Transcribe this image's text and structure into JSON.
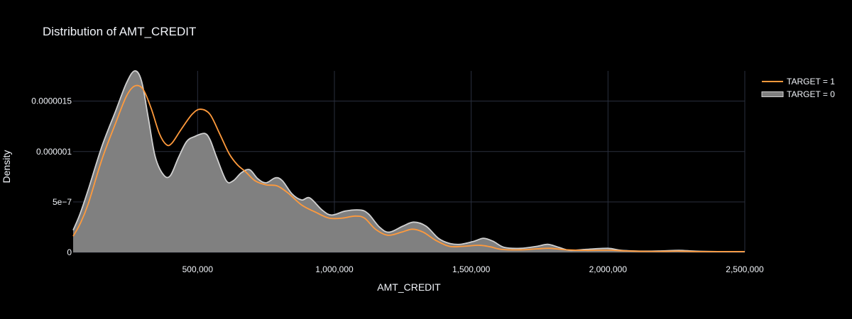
{
  "chart_data": {
    "type": "area",
    "title": "Distribution of AMT_CREDIT",
    "xlabel": "AMT_CREDIT",
    "ylabel": "Density",
    "xlim": [
      45000,
      2500000
    ],
    "ylim": [
      0,
      1.8e-06
    ],
    "grid": true,
    "legend_position": "top-right",
    "x_ticks": [
      {
        "value": 500000,
        "label": "500,000"
      },
      {
        "value": 1000000,
        "label": "1,000,000"
      },
      {
        "value": 1500000,
        "label": "1,500,000"
      },
      {
        "value": 2000000,
        "label": "2,000,000"
      },
      {
        "value": 2500000,
        "label": "2,500,000"
      }
    ],
    "y_ticks": [
      {
        "value": 0,
        "label": "0"
      },
      {
        "value": 5e-07,
        "label": "5e−7"
      },
      {
        "value": 1e-06,
        "label": "0.000001"
      },
      {
        "value": 1.5e-06,
        "label": "0.0000015"
      }
    ],
    "series": [
      {
        "name": "TARGET = 0",
        "kind": "area",
        "color": "#d0d0d0",
        "fill": "#808080",
        "points": [
          [
            45000,
            2.2e-07
          ],
          [
            70000,
            3.8e-07
          ],
          [
            100000,
            6.2e-07
          ],
          [
            150000,
            1.05e-06
          ],
          [
            200000,
            1.4e-06
          ],
          [
            240000,
            1.68e-06
          ],
          [
            270000,
            1.8e-06
          ],
          [
            295000,
            1.7e-06
          ],
          [
            320000,
            1.33e-06
          ],
          [
            345000,
            9.5e-07
          ],
          [
            375000,
            7.7e-07
          ],
          [
            400000,
            7.6e-07
          ],
          [
            430000,
            9.4e-07
          ],
          [
            460000,
            1.1e-06
          ],
          [
            490000,
            1.15e-06
          ],
          [
            525000,
            1.18e-06
          ],
          [
            545000,
            1.12e-06
          ],
          [
            570000,
            9.4e-07
          ],
          [
            605000,
            7.1e-07
          ],
          [
            630000,
            7.1e-07
          ],
          [
            660000,
            7.9e-07
          ],
          [
            690000,
            8.2e-07
          ],
          [
            720000,
            7.3e-07
          ],
          [
            750000,
            6.9e-07
          ],
          [
            785000,
            7.4e-07
          ],
          [
            810000,
            7.1e-07
          ],
          [
            845000,
            5.8e-07
          ],
          [
            880000,
            5.2e-07
          ],
          [
            910000,
            5.4e-07
          ],
          [
            955000,
            4.2e-07
          ],
          [
            990000,
            3.7e-07
          ],
          [
            1040000,
            4.1e-07
          ],
          [
            1095000,
            4.2e-07
          ],
          [
            1125000,
            3.8e-07
          ],
          [
            1165000,
            2.5e-07
          ],
          [
            1200000,
            2e-07
          ],
          [
            1250000,
            2.6e-07
          ],
          [
            1290000,
            3e-07
          ],
          [
            1335000,
            2.6e-07
          ],
          [
            1380000,
            1.4e-07
          ],
          [
            1420000,
            9e-08
          ],
          [
            1460000,
            8e-08
          ],
          [
            1510000,
            1.1e-07
          ],
          [
            1545000,
            1.4e-07
          ],
          [
            1580000,
            1.1e-07
          ],
          [
            1620000,
            5e-08
          ],
          [
            1680000,
            4e-08
          ],
          [
            1740000,
            6e-08
          ],
          [
            1780000,
            8e-08
          ],
          [
            1820000,
            5e-08
          ],
          [
            1860000,
            2e-08
          ],
          [
            1920000,
            3e-08
          ],
          [
            2000000,
            4e-08
          ],
          [
            2050000,
            2e-08
          ],
          [
            2130000,
            1.2e-08
          ],
          [
            2200000,
            1.5e-08
          ],
          [
            2260000,
            2e-08
          ],
          [
            2320000,
            1.2e-08
          ],
          [
            2400000,
            8e-09
          ],
          [
            2500000,
            8e-09
          ]
        ]
      },
      {
        "name": "TARGET = 1",
        "kind": "line",
        "color": "#ff9a3c",
        "points": [
          [
            45000,
            1.6e-07
          ],
          [
            70000,
            2.8e-07
          ],
          [
            100000,
            4.8e-07
          ],
          [
            150000,
            9.2e-07
          ],
          [
            200000,
            1.28e-06
          ],
          [
            240000,
            1.55e-06
          ],
          [
            270000,
            1.65e-06
          ],
          [
            300000,
            1.62e-06
          ],
          [
            330000,
            1.43e-06
          ],
          [
            360000,
            1.18e-06
          ],
          [
            385000,
            1.07e-06
          ],
          [
            405000,
            1.08e-06
          ],
          [
            440000,
            1.22e-06
          ],
          [
            480000,
            1.37e-06
          ],
          [
            510000,
            1.42e-06
          ],
          [
            545000,
            1.37e-06
          ],
          [
            580000,
            1.18e-06
          ],
          [
            615000,
            9.8e-07
          ],
          [
            645000,
            8.7e-07
          ],
          [
            675000,
            8e-07
          ],
          [
            710000,
            7.1e-07
          ],
          [
            750000,
            6.7e-07
          ],
          [
            790000,
            6.6e-07
          ],
          [
            830000,
            5.9e-07
          ],
          [
            880000,
            4.7e-07
          ],
          [
            930000,
            4e-07
          ],
          [
            980000,
            3.4e-07
          ],
          [
            1030000,
            3.4e-07
          ],
          [
            1075000,
            3.6e-07
          ],
          [
            1110000,
            3.4e-07
          ],
          [
            1150000,
            2.3e-07
          ],
          [
            1195000,
            1.7e-07
          ],
          [
            1245000,
            2e-07
          ],
          [
            1285000,
            2.3e-07
          ],
          [
            1325000,
            2e-07
          ],
          [
            1370000,
            1.2e-07
          ],
          [
            1420000,
            6e-08
          ],
          [
            1470000,
            6e-08
          ],
          [
            1530000,
            7e-08
          ],
          [
            1570000,
            5.5e-08
          ],
          [
            1610000,
            3e-08
          ],
          [
            1680000,
            2.5e-08
          ],
          [
            1740000,
            3.5e-08
          ],
          [
            1790000,
            4e-08
          ],
          [
            1850000,
            2.5e-08
          ],
          [
            1920000,
            2e-08
          ],
          [
            2000000,
            2.2e-08
          ],
          [
            2060000,
            1.5e-08
          ],
          [
            2130000,
            1e-08
          ],
          [
            2200000,
            1e-08
          ],
          [
            2260000,
            1.2e-08
          ],
          [
            2330000,
            8e-09
          ],
          [
            2420000,
            8e-09
          ],
          [
            2500000,
            8e-09
          ]
        ]
      }
    ]
  }
}
